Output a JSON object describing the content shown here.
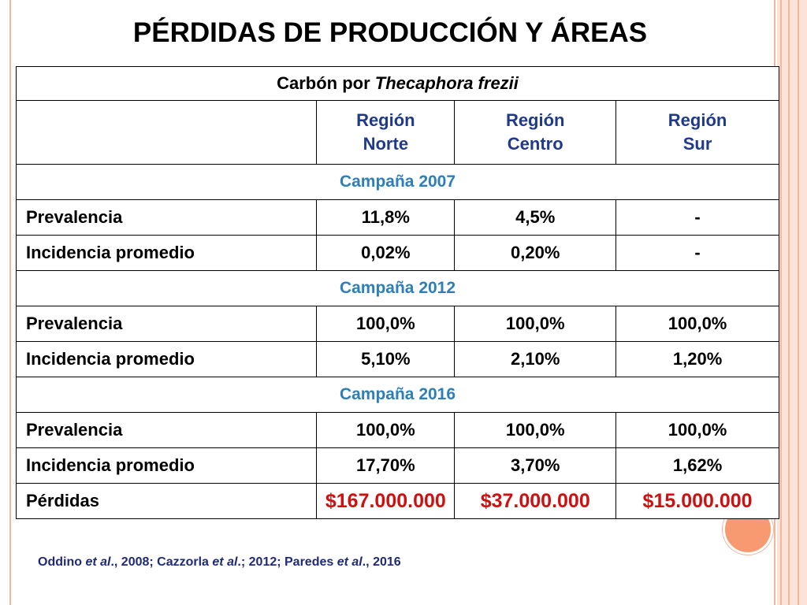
{
  "title": "PÉRDIDAS DE PRODUCCIÓN Y ÁREAS",
  "table": {
    "caption_prefix": "Carbón por ",
    "caption_italic": "Thecaphora frezii",
    "regions": [
      {
        "line1": "Región",
        "line2": "Norte"
      },
      {
        "line1": "Región",
        "line2": "Centro"
      },
      {
        "line1": "Región",
        "line2": "Sur"
      }
    ],
    "campaigns": [
      {
        "label": "Campaña 2007",
        "rows": [
          {
            "label": "Prevalencia",
            "values": [
              "11,8%",
              "4,5%",
              "-"
            ]
          },
          {
            "label": "Incidencia promedio",
            "values": [
              "0,02%",
              "0,20%",
              "-"
            ]
          }
        ]
      },
      {
        "label": "Campaña 2012",
        "rows": [
          {
            "label": "Prevalencia",
            "values": [
              "100,0%",
              "100,0%",
              "100,0%"
            ]
          },
          {
            "label": "Incidencia promedio",
            "values": [
              "5,10%",
              "2,10%",
              "1,20%"
            ]
          }
        ]
      },
      {
        "label": "Campaña 2016",
        "rows": [
          {
            "label": "Prevalencia",
            "values": [
              "100,0%",
              "100,0%",
              "100,0%"
            ]
          },
          {
            "label": "Incidencia promedio",
            "values": [
              "17,70%",
              "3,70%",
              "1,62%"
            ]
          },
          {
            "label": "Pérdidas",
            "values": [
              "$167.000.000",
              "$37.000.000",
              "$15.000.000"
            ]
          }
        ]
      }
    ]
  },
  "citation": {
    "a1": "Oddino ",
    "a1_etal": "et al",
    "a1_rest": "., 2008; Cazzorla ",
    "a2_etal": "et al",
    "a2_rest": ".; 2012; Paredes ",
    "a3_etal": "et al",
    "a3_rest": "., 2016"
  },
  "colors": {
    "accent": "#f79a72",
    "frame": "#f4b59a",
    "header_text": "#1f3a8a",
    "campaign_text": "#2c7fb8",
    "money_text": "#d01010"
  }
}
